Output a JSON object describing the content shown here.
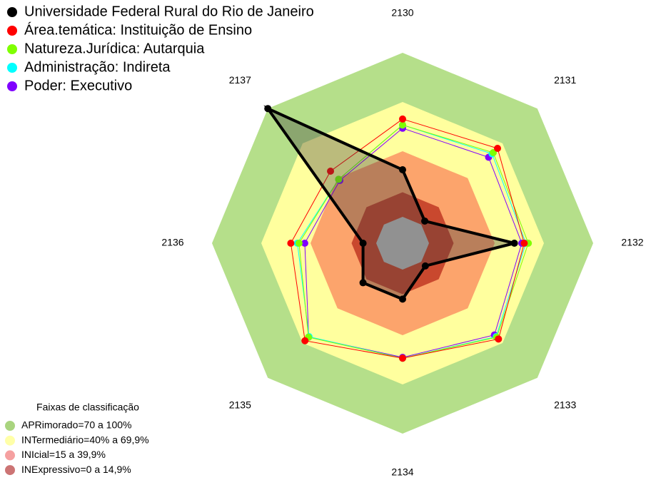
{
  "chart_data": {
    "type": "radar",
    "categories": [
      "2130",
      "2131",
      "2132",
      "2133",
      "2134",
      "2135",
      "2136",
      "2137"
    ],
    "ylim": [
      0,
      100
    ],
    "series": [
      {
        "name": "Universidade Federal Rural do Rio de Janeiro",
        "color": "#000000",
        "values": [
          28.7,
          3,
          52,
          3.5,
          18,
          18,
          8,
          100
        ]
      },
      {
        "name": "Área.temática: Instituição de Ensino",
        "color": "#ff0000",
        "values": [
          59.6,
          65.7,
          58,
          66.5,
          54,
          68,
          52,
          46
        ]
      },
      {
        "name": "Natureza.Jurídica: Autarquia",
        "color": "#7fff00",
        "values": [
          56,
          62,
          60.5,
          65,
          54,
          65,
          47,
          39
        ]
      },
      {
        "name": "Administração: Indireta",
        "color": "#00ffff",
        "values": [
          56,
          61,
          59,
          64.5,
          54,
          64.5,
          48,
          39
        ]
      },
      {
        "name": "Poder: Executivo",
        "color": "#8000ff",
        "values": [
          54,
          58,
          56.5,
          63,
          53.5,
          64.8,
          43.5,
          38
        ]
      }
    ],
    "bands_title": "Faixas de classificação",
    "bands": [
      {
        "label": "APRimorado=70 a 100%",
        "min": 70,
        "max": 100,
        "color": "#b5df8a",
        "swatch": "#a9d47f"
      },
      {
        "label": "INTermediário=40% a 69,9%",
        "min": 40,
        "max": 70,
        "color": "#ffff9e",
        "swatch": "#ffffa8"
      },
      {
        "label": "INIcial=15 a 39,9%",
        "min": 15,
        "max": 40,
        "color": "#fca46c",
        "swatch": "#f5a0a0"
      },
      {
        "label": "INExpressivo=0 a 14,9%",
        "min": 0,
        "max": 15,
        "color": "#c9482e",
        "swatch": "#cc7474"
      }
    ]
  }
}
